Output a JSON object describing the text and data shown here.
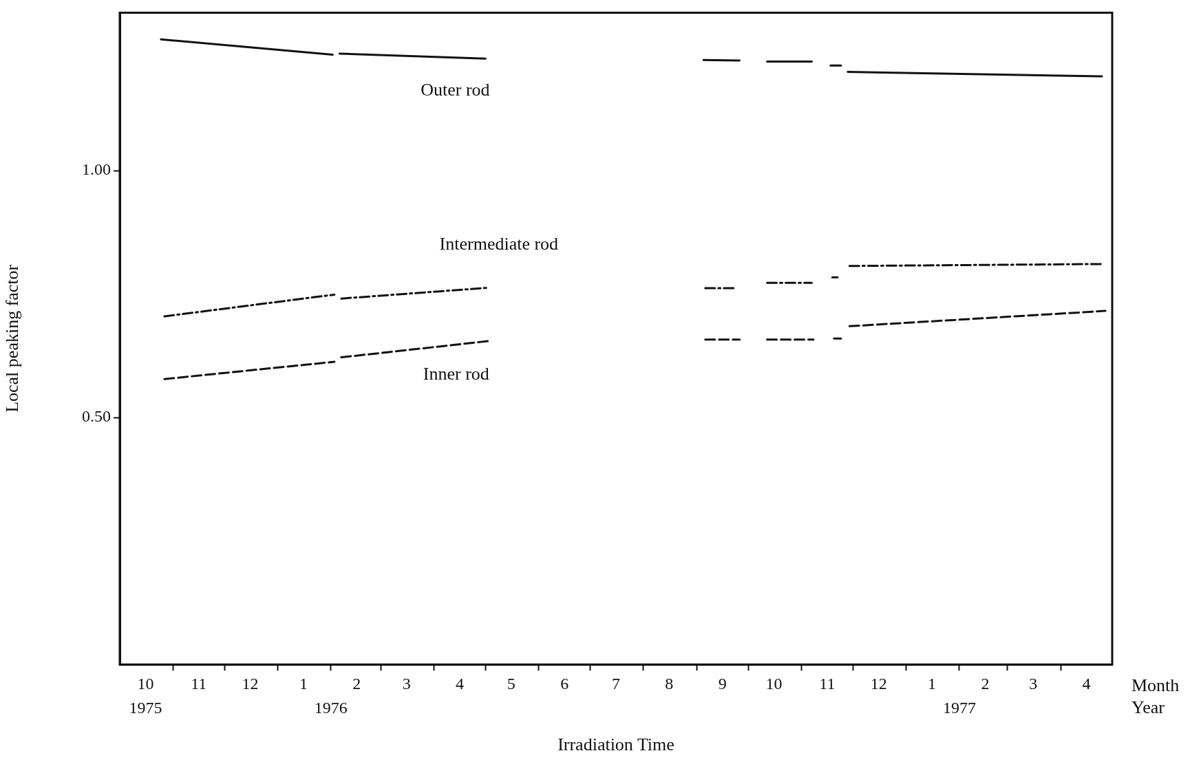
{
  "chart_data": {
    "type": "line",
    "xlabel": "Irradiation Time",
    "ylabel": "Local peaking factor",
    "xlim": [
      "1975-10-01",
      "1977-05-01"
    ],
    "xticks": [
      {
        "value": "1975-10-16",
        "label": "10"
      },
      {
        "value": "1975-11-01",
        "label": null
      },
      {
        "value": "1975-11-16",
        "label": "11"
      },
      {
        "value": "1975-12-01",
        "label": null
      },
      {
        "value": "1975-12-16",
        "label": "12"
      },
      {
        "value": "1976-01-01",
        "label": null
      },
      {
        "value": "1976-01-16",
        "label": "1"
      },
      {
        "value": "1976-02-01",
        "label": null
      },
      {
        "value": "1976-02-16",
        "label": "2"
      },
      {
        "value": "1976-03-01",
        "label": null
      },
      {
        "value": "1976-03-16",
        "label": "3"
      },
      {
        "value": "1976-04-01",
        "label": null
      },
      {
        "value": "1976-04-16",
        "label": "4"
      },
      {
        "value": "1976-05-01",
        "label": null
      },
      {
        "value": "1976-05-16",
        "label": "5"
      },
      {
        "value": "1976-06-01",
        "label": null
      },
      {
        "value": "1976-06-16",
        "label": "6"
      },
      {
        "value": "1976-07-01",
        "label": null
      },
      {
        "value": "1976-07-16",
        "label": "7"
      },
      {
        "value": "1976-08-01",
        "label": null
      },
      {
        "value": "1976-08-16",
        "label": "8"
      },
      {
        "value": "1976-09-01",
        "label": null
      },
      {
        "value": "1976-09-16",
        "label": "9"
      },
      {
        "value": "1976-10-01",
        "label": null
      },
      {
        "value": "1976-10-16",
        "label": "10"
      },
      {
        "value": "1976-11-01",
        "label": null
      },
      {
        "value": "1976-11-16",
        "label": "11"
      },
      {
        "value": "1976-12-01",
        "label": null
      },
      {
        "value": "1976-12-16",
        "label": "12"
      },
      {
        "value": "1977-01-01",
        "label": null
      },
      {
        "value": "1977-01-16",
        "label": "1"
      },
      {
        "value": "1977-02-01",
        "label": null
      },
      {
        "value": "1977-02-16",
        "label": "2"
      },
      {
        "value": "1977-03-01",
        "label": null
      },
      {
        "value": "1977-03-16",
        "label": "3"
      },
      {
        "value": "1977-04-01",
        "label": null
      },
      {
        "value": "1977-04-16",
        "label": "4"
      }
    ],
    "x2lim": [
      "1975-10-01",
      "1977-05-01"
    ],
    "x2ticks": [
      {
        "value": "1975-10-16",
        "label": "1975"
      },
      {
        "value": "1976-02-01",
        "label": "1976"
      },
      {
        "value": "1977-02-01",
        "label": "1977"
      }
    ],
    "ylim": [
      0,
      1.32
    ],
    "yticks": [
      {
        "value": 0.5,
        "label": "0.50"
      },
      {
        "value": 1,
        "label": "1.00"
      }
    ],
    "series": [
      {
        "color": "#111111",
        "line_style": "solid",
        "x": [
          "1975-10-25",
          "1976-02-02",
          "1976-02-04",
          "1976-02-06",
          "1976-05-01",
          "1976-07-01",
          "1976-09-05",
          "1976-09-26",
          "1976-10-04",
          "1976-10-12",
          "1976-11-07",
          "1976-11-13",
          "1976-11-18",
          "1976-11-24",
          "1976-11-26",
          "1976-11-28",
          "1977-04-25"
        ],
        "values": [
          1.266,
          1.235,
          null,
          1.237,
          1.227,
          null,
          1.224,
          1.223,
          null,
          1.221,
          1.221,
          null,
          1.213,
          1.213,
          null,
          1.2,
          1.191
        ]
      },
      {
        "color": "#111111",
        "line_style": "dashdot",
        "x": [
          "1975-10-27",
          "1976-02-03",
          "1976-02-05",
          "1976-02-07",
          "1976-05-03",
          "1976-07-01",
          "1976-09-06",
          "1976-09-24",
          "1976-10-04",
          "1976-10-12",
          "1976-11-07",
          "1976-11-13",
          "1976-11-19",
          "1976-11-22",
          "1976-11-26",
          "1976-11-29",
          "1977-04-26"
        ],
        "values": [
          0.705,
          0.749,
          null,
          0.741,
          0.763,
          null,
          0.762,
          0.762,
          null,
          0.773,
          0.773,
          null,
          0.784,
          0.784,
          null,
          0.807,
          0.811
        ]
      },
      {
        "color": "#111111",
        "line_style": "dashed",
        "x": [
          "1975-10-27",
          "1976-02-03",
          "1976-02-05",
          "1976-02-07",
          "1976-05-03",
          "1976-07-01",
          "1976-09-06",
          "1976-09-26",
          "1976-10-04",
          "1976-10-12",
          "1976-11-08",
          "1976-11-13",
          "1976-11-20",
          "1976-11-24",
          "1976-11-26",
          "1976-11-29",
          "1977-04-27"
        ],
        "values": [
          0.578,
          0.613,
          null,
          0.622,
          0.655,
          null,
          0.658,
          0.658,
          null,
          0.658,
          0.658,
          null,
          0.66,
          0.66,
          null,
          0.685,
          0.716
        ]
      }
    ],
    "annotations": [
      "Outer rod",
      "Intermediate rod",
      "Inner rod",
      "Month",
      "Year"
    ]
  }
}
